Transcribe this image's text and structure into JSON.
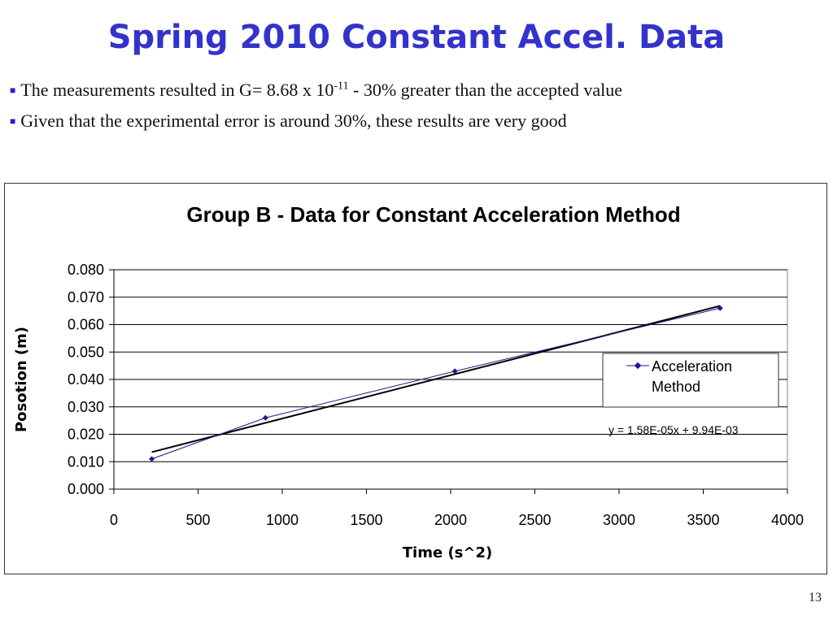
{
  "slide": {
    "title": "Spring 2010 Constant Accel. Data",
    "bullets": [
      {
        "pre": "The measurements resulted in G= 8.68 x 10",
        "sup": "-11",
        "post": " -  30% greater than the accepted value"
      },
      {
        "pre": "Given that the experimental error is around 30%, these results are very good",
        "sup": "",
        "post": ""
      }
    ],
    "page_number": "13"
  },
  "chart_data": {
    "type": "scatter",
    "title": "Group B - Data for Constant Acceleration Method",
    "xlabel": "Time (s^2)",
    "ylabel": "Posotion (m)",
    "xlim": [
      0,
      4000
    ],
    "ylim": [
      0.0,
      0.08
    ],
    "xticks": [
      0,
      500,
      1000,
      1500,
      2000,
      2500,
      3000,
      3500,
      4000
    ],
    "xtick_labels": [
      "0",
      "500",
      "1000",
      "1500",
      "2000",
      "2500",
      "3000",
      "3500",
      "4000"
    ],
    "yticks": [
      0,
      0.01,
      0.02,
      0.03,
      0.04,
      0.05,
      0.06,
      0.07,
      0.08
    ],
    "ytick_labels": [
      "0.000",
      "0.010",
      "0.020",
      "0.030",
      "0.040",
      "0.050",
      "0.060",
      "0.070",
      "0.080"
    ],
    "grid": "horizontal",
    "legend_position": "right",
    "series": [
      {
        "name": "Acceleration Method",
        "color": "#1a1a8c",
        "x": [
          225,
          900,
          2025,
          3600
        ],
        "y": [
          0.011,
          0.026,
          0.043,
          0.066
        ]
      }
    ],
    "trendline": {
      "equation": "y = 1.58E-05x + 9.94E-03",
      "slope": 1.58e-05,
      "intercept": 0.00994,
      "x_range": [
        225,
        3600
      ],
      "color": "#000000"
    },
    "legend_labels": [
      "Acceleration",
      "Method"
    ]
  }
}
